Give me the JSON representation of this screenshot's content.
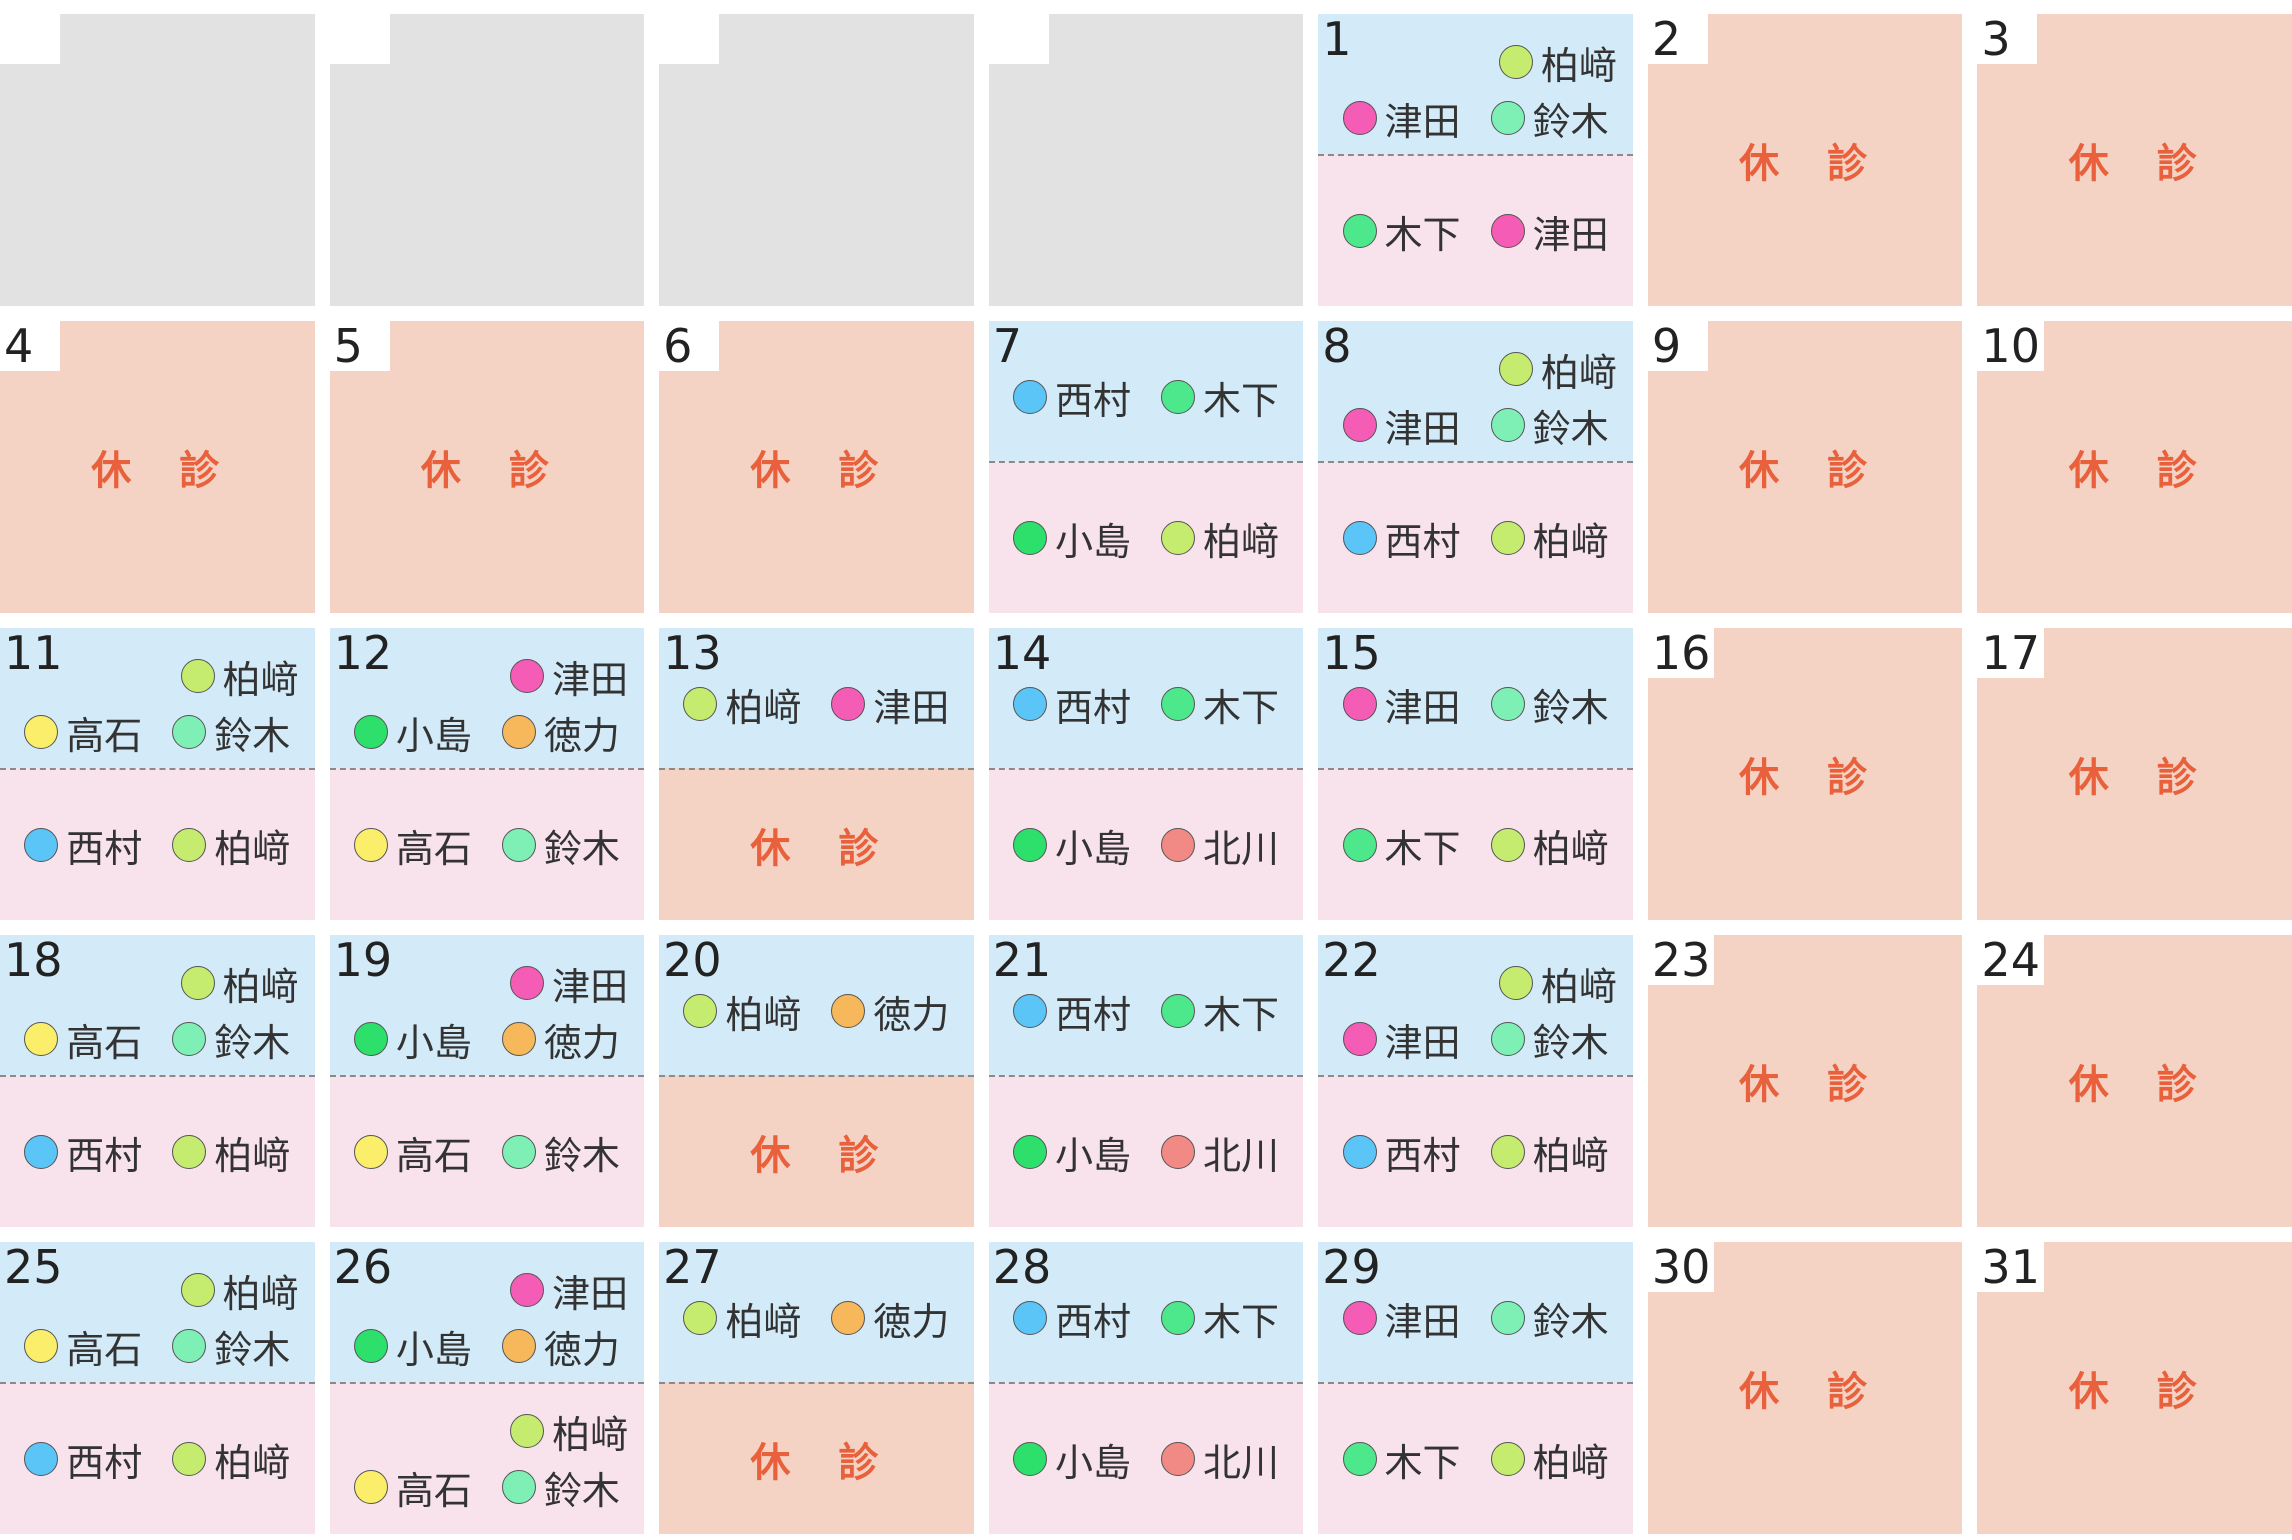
{
  "calendar": {
    "days": [
      null,
      null,
      null,
      null,
      {
        "day": 1,
        "am": [
          [
            {
              "name": "柏﨑",
              "color": "#c5ec6e"
            }
          ],
          [
            {
              "name": "津田",
              "color": "#f55cb5"
            },
            {
              "name": "鈴木",
              "color": "#7ff0b5"
            }
          ]
        ],
        "pm": [
          [
            {
              "name": "木下",
              "color": "#4ee88c"
            },
            {
              "name": "津田",
              "color": "#f55cb5"
            }
          ]
        ]
      },
      {
        "day": 2,
        "closed": "休　診"
      },
      {
        "day": 3,
        "closed": "休　診"
      },
      {
        "day": 4,
        "closed": "休　診"
      },
      {
        "day": 5,
        "closed": "休　診"
      },
      {
        "day": 6,
        "closed": "休　診"
      },
      {
        "day": 7,
        "am": [
          [
            {
              "name": "西村",
              "color": "#5cc5f7"
            },
            {
              "name": "木下",
              "color": "#4ee88c"
            }
          ]
        ],
        "pm": [
          [
            {
              "name": "小島",
              "color": "#2de06b"
            },
            {
              "name": "柏﨑",
              "color": "#c5ec6e"
            }
          ]
        ]
      },
      {
        "day": 8,
        "am": [
          [
            {
              "name": "柏﨑",
              "color": "#c5ec6e"
            }
          ],
          [
            {
              "name": "津田",
              "color": "#f55cb5"
            },
            {
              "name": "鈴木",
              "color": "#7ff0b5"
            }
          ]
        ],
        "pm": [
          [
            {
              "name": "西村",
              "color": "#5cc5f7"
            },
            {
              "name": "柏﨑",
              "color": "#c5ec6e"
            }
          ]
        ]
      },
      {
        "day": 9,
        "closed": "休　診"
      },
      {
        "day": 10,
        "closed": "休　診"
      },
      {
        "day": 11,
        "am": [
          [
            {
              "name": "柏﨑",
              "color": "#c5ec6e"
            }
          ],
          [
            {
              "name": "高石",
              "color": "#fbee6a"
            },
            {
              "name": "鈴木",
              "color": "#7ff0b5"
            }
          ]
        ],
        "pm": [
          [
            {
              "name": "西村",
              "color": "#5cc5f7"
            },
            {
              "name": "柏﨑",
              "color": "#c5ec6e"
            }
          ]
        ]
      },
      {
        "day": 12,
        "am": [
          [
            {
              "name": "津田",
              "color": "#f55cb5"
            }
          ],
          [
            {
              "name": "小島",
              "color": "#2de06b"
            },
            {
              "name": "徳力",
              "color": "#f6b85a"
            }
          ]
        ],
        "pm": [
          [
            {
              "name": "高石",
              "color": "#fbee6a"
            },
            {
              "name": "鈴木",
              "color": "#7ff0b5"
            }
          ]
        ]
      },
      {
        "day": 13,
        "am": [
          [
            {
              "name": "柏﨑",
              "color": "#c5ec6e"
            },
            {
              "name": "津田",
              "color": "#f55cb5"
            }
          ]
        ],
        "pm_closed": "休　診"
      },
      {
        "day": 14,
        "am": [
          [
            {
              "name": "西村",
              "color": "#5cc5f7"
            },
            {
              "name": "木下",
              "color": "#4ee88c"
            }
          ]
        ],
        "pm": [
          [
            {
              "name": "小島",
              "color": "#2de06b"
            },
            {
              "name": "北川",
              "color": "#f18a85"
            }
          ]
        ]
      },
      {
        "day": 15,
        "am": [
          [
            {
              "name": "津田",
              "color": "#f55cb5"
            },
            {
              "name": "鈴木",
              "color": "#7ff0b5"
            }
          ]
        ],
        "pm": [
          [
            {
              "name": "木下",
              "color": "#4ee88c"
            },
            {
              "name": "柏﨑",
              "color": "#c5ec6e"
            }
          ]
        ]
      },
      {
        "day": 16,
        "closed": "休　診"
      },
      {
        "day": 17,
        "closed": "休　診"
      },
      {
        "day": 18,
        "am": [
          [
            {
              "name": "柏﨑",
              "color": "#c5ec6e"
            }
          ],
          [
            {
              "name": "高石",
              "color": "#fbee6a"
            },
            {
              "name": "鈴木",
              "color": "#7ff0b5"
            }
          ]
        ],
        "pm": [
          [
            {
              "name": "西村",
              "color": "#5cc5f7"
            },
            {
              "name": "柏﨑",
              "color": "#c5ec6e"
            }
          ]
        ]
      },
      {
        "day": 19,
        "am": [
          [
            {
              "name": "津田",
              "color": "#f55cb5"
            }
          ],
          [
            {
              "name": "小島",
              "color": "#2de06b"
            },
            {
              "name": "徳力",
              "color": "#f6b85a"
            }
          ]
        ],
        "pm": [
          [
            {
              "name": "高石",
              "color": "#fbee6a"
            },
            {
              "name": "鈴木",
              "color": "#7ff0b5"
            }
          ]
        ]
      },
      {
        "day": 20,
        "am": [
          [
            {
              "name": "柏﨑",
              "color": "#c5ec6e"
            },
            {
              "name": "徳力",
              "color": "#f6b85a"
            }
          ]
        ],
        "pm_closed": "休　診"
      },
      {
        "day": 21,
        "am": [
          [
            {
              "name": "西村",
              "color": "#5cc5f7"
            },
            {
              "name": "木下",
              "color": "#4ee88c"
            }
          ]
        ],
        "pm": [
          [
            {
              "name": "小島",
              "color": "#2de06b"
            },
            {
              "name": "北川",
              "color": "#f18a85"
            }
          ]
        ]
      },
      {
        "day": 22,
        "am": [
          [
            {
              "name": "柏﨑",
              "color": "#c5ec6e"
            }
          ],
          [
            {
              "name": "津田",
              "color": "#f55cb5"
            },
            {
              "name": "鈴木",
              "color": "#7ff0b5"
            }
          ]
        ],
        "pm": [
          [
            {
              "name": "西村",
              "color": "#5cc5f7"
            },
            {
              "name": "柏﨑",
              "color": "#c5ec6e"
            }
          ]
        ]
      },
      {
        "day": 23,
        "closed": "休　診"
      },
      {
        "day": 24,
        "closed": "休　診"
      },
      {
        "day": 25,
        "am": [
          [
            {
              "name": "柏﨑",
              "color": "#c5ec6e"
            }
          ],
          [
            {
              "name": "高石",
              "color": "#fbee6a"
            },
            {
              "name": "鈴木",
              "color": "#7ff0b5"
            }
          ]
        ],
        "pm": [
          [
            {
              "name": "西村",
              "color": "#5cc5f7"
            },
            {
              "name": "柏﨑",
              "color": "#c5ec6e"
            }
          ]
        ]
      },
      {
        "day": 26,
        "am": [
          [
            {
              "name": "津田",
              "color": "#f55cb5"
            }
          ],
          [
            {
              "name": "小島",
              "color": "#2de06b"
            },
            {
              "name": "徳力",
              "color": "#f6b85a"
            }
          ]
        ],
        "pm": [
          [
            {
              "name": "柏﨑",
              "color": "#c5ec6e"
            }
          ],
          [
            {
              "name": "高石",
              "color": "#fbee6a"
            },
            {
              "name": "鈴木",
              "color": "#7ff0b5"
            }
          ]
        ]
      },
      {
        "day": 27,
        "am": [
          [
            {
              "name": "柏﨑",
              "color": "#c5ec6e"
            },
            {
              "name": "徳力",
              "color": "#f6b85a"
            }
          ]
        ],
        "pm_closed": "休　診"
      },
      {
        "day": 28,
        "am": [
          [
            {
              "name": "西村",
              "color": "#5cc5f7"
            },
            {
              "name": "木下",
              "color": "#4ee88c"
            }
          ]
        ],
        "pm": [
          [
            {
              "name": "小島",
              "color": "#2de06b"
            },
            {
              "name": "北川",
              "color": "#f18a85"
            }
          ]
        ]
      },
      {
        "day": 29,
        "am": [
          [
            {
              "name": "津田",
              "color": "#f55cb5"
            },
            {
              "name": "鈴木",
              "color": "#7ff0b5"
            }
          ]
        ],
        "pm": [
          [
            {
              "name": "木下",
              "color": "#4ee88c"
            },
            {
              "name": "柏﨑",
              "color": "#c5ec6e"
            }
          ]
        ]
      },
      {
        "day": 30,
        "closed": "休　診"
      },
      {
        "day": 31,
        "closed": "休　診"
      }
    ]
  }
}
